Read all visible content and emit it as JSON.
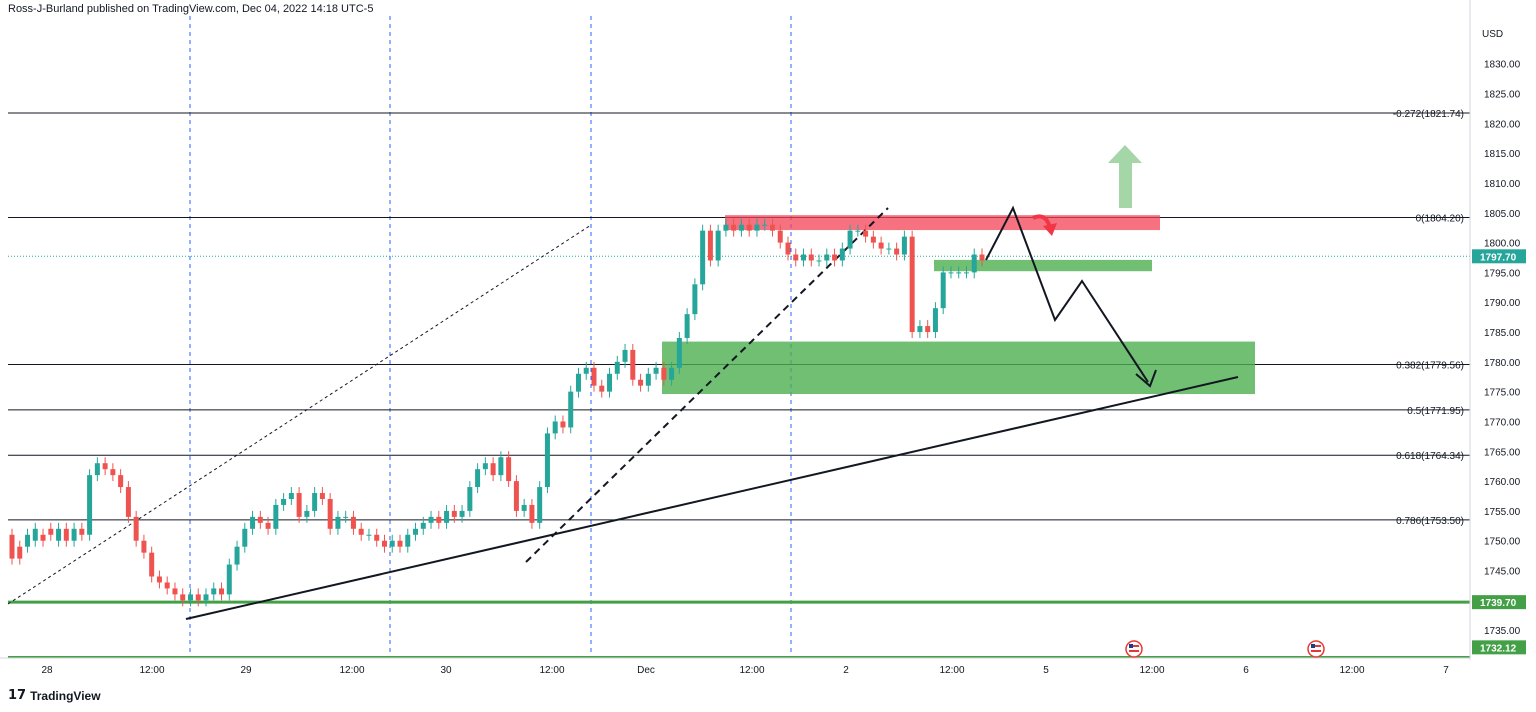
{
  "header": {
    "publisher": "Ross-J-Burland published on TradingView.com, Dec 04, 2022 14:18 UTC-5"
  },
  "footer": {
    "brand": "TradingView"
  },
  "colors": {
    "up": "#26a69a",
    "down": "#ef5350",
    "green_zone": "#4caf50",
    "red_zone": "#f44355",
    "line": "#131722"
  },
  "chart_data": {
    "type": "candlestick",
    "currency": "USD",
    "ylim": [
      1730.5,
      1838
    ],
    "y_ticks": [
      1735,
      1740,
      1745,
      1750,
      1755,
      1760,
      1765,
      1770,
      1775,
      1780,
      1785,
      1790,
      1795,
      1800,
      1805,
      1810,
      1815,
      1820,
      1825,
      1830
    ],
    "x_ticks": [
      "28",
      "12:00",
      "29",
      "12:00",
      "30",
      "12:00",
      "Dec",
      "12:00",
      "2",
      "12:00",
      "5",
      "12:00",
      "6",
      "12:00",
      "7"
    ],
    "last_price": "1797.70",
    "price_badges": [
      "1739.70",
      "1732.12"
    ],
    "fib_levels": [
      {
        "label": "-0.272(1821.74)",
        "value": 1821.74
      },
      {
        "label": "0(1804.20)",
        "value": 1804.2
      },
      {
        "label": "0.382(1779.56)",
        "value": 1779.56
      },
      {
        "label": "0.5(1771.95)",
        "value": 1771.95
      },
      {
        "label": "0.618(1764.34)",
        "value": 1764.34
      },
      {
        "label": "0.786(1753.50)",
        "value": 1753.5
      }
    ],
    "support_line": 1739.7,
    "zones": [
      {
        "kind": "resistance",
        "top": 1804.6,
        "bottom": 1802.1
      },
      {
        "kind": "support",
        "top": 1797.1,
        "bottom": 1795.2
      },
      {
        "kind": "support",
        "top": 1783.4,
        "bottom": 1774.6
      }
    ],
    "candles": [
      [
        1751,
        1747
      ],
      [
        1749,
        1747
      ],
      [
        1749,
        1751
      ],
      [
        1750,
        1752
      ],
      [
        1751,
        1750
      ],
      [
        1752,
        1751
      ],
      [
        1750,
        1752
      ],
      [
        1752,
        1750
      ],
      [
        1750,
        1752
      ],
      [
        1752,
        1751
      ],
      [
        1751,
        1761
      ],
      [
        1761,
        1763
      ],
      [
        1763,
        1762
      ],
      [
        1762,
        1761
      ],
      [
        1761,
        1759
      ],
      [
        1759,
        1754
      ],
      [
        1754,
        1750
      ],
      [
        1750,
        1748
      ],
      [
        1748,
        1744
      ],
      [
        1744,
        1743
      ],
      [
        1743,
        1742
      ],
      [
        1742,
        1741
      ],
      [
        1741,
        1740
      ],
      [
        1740,
        1741
      ],
      [
        1741,
        1740
      ],
      [
        1740,
        1741
      ],
      [
        1741,
        1742
      ],
      [
        1742,
        1741
      ],
      [
        1741,
        1746
      ],
      [
        1746,
        1749
      ],
      [
        1749,
        1752
      ],
      [
        1752,
        1754
      ],
      [
        1754,
        1753
      ],
      [
        1753,
        1752
      ],
      [
        1752,
        1756
      ],
      [
        1756,
        1757
      ],
      [
        1757,
        1758
      ],
      [
        1758,
        1754
      ],
      [
        1754,
        1755
      ],
      [
        1755,
        1758
      ],
      [
        1758,
        1757
      ],
      [
        1757,
        1752
      ],
      [
        1752,
        1754
      ],
      [
        1754,
        1754
      ],
      [
        1754,
        1752
      ],
      [
        1752,
        1751
      ],
      [
        1751,
        1751
      ],
      [
        1751,
        1750
      ],
      [
        1750,
        1749
      ],
      [
        1749,
        1750
      ],
      [
        1750,
        1749
      ],
      [
        1749,
        1751
      ],
      [
        1751,
        1752
      ],
      [
        1752,
        1753
      ],
      [
        1753,
        1754
      ],
      [
        1754,
        1753
      ],
      [
        1753,
        1755
      ],
      [
        1755,
        1754
      ],
      [
        1754,
        1755
      ],
      [
        1755,
        1759
      ],
      [
        1759,
        1762
      ],
      [
        1762,
        1763
      ],
      [
        1763,
        1761
      ],
      [
        1761,
        1764
      ],
      [
        1764,
        1760
      ],
      [
        1760,
        1755
      ],
      [
        1755,
        1756
      ],
      [
        1756,
        1753
      ],
      [
        1753,
        1759
      ],
      [
        1759,
        1768
      ],
      [
        1768,
        1770
      ],
      [
        1770,
        1769
      ],
      [
        1769,
        1775
      ],
      [
        1775,
        1778
      ],
      [
        1778,
        1779
      ],
      [
        1779,
        1776
      ],
      [
        1776,
        1775
      ],
      [
        1775,
        1778
      ],
      [
        1778,
        1780
      ],
      [
        1780,
        1782
      ],
      [
        1782,
        1777
      ],
      [
        1777,
        1776
      ],
      [
        1776,
        1778
      ],
      [
        1778,
        1779
      ],
      [
        1779,
        1777
      ],
      [
        1777,
        1779
      ],
      [
        1779,
        1784
      ],
      [
        1784,
        1788
      ],
      [
        1788,
        1793
      ],
      [
        1793,
        1802
      ],
      [
        1802,
        1797
      ],
      [
        1797,
        1802
      ],
      [
        1802,
        1803
      ],
      [
        1803,
        1802
      ],
      [
        1802,
        1803
      ],
      [
        1803,
        1802
      ],
      [
        1802,
        1803
      ],
      [
        1803,
        1803
      ],
      [
        1803,
        1802
      ],
      [
        1802,
        1800
      ],
      [
        1800,
        1798
      ],
      [
        1798,
        1797
      ],
      [
        1797,
        1798
      ],
      [
        1798,
        1797
      ],
      [
        1797,
        1797
      ],
      [
        1797,
        1798
      ],
      [
        1798,
        1797
      ],
      [
        1797,
        1799
      ],
      [
        1799,
        1802
      ],
      [
        1802,
        1802
      ],
      [
        1802,
        1801
      ],
      [
        1801,
        1800
      ],
      [
        1800,
        1799
      ],
      [
        1799,
        1799
      ],
      [
        1799,
        1798
      ],
      [
        1798,
        1801
      ],
      [
        1801,
        1785
      ],
      [
        1785,
        1786
      ],
      [
        1786,
        1785
      ],
      [
        1785,
        1789
      ],
      [
        1789,
        1795
      ],
      [
        1795,
        1795
      ],
      [
        1795,
        1795
      ],
      [
        1795,
        1795
      ],
      [
        1795,
        1798
      ],
      [
        1798,
        1797
      ]
    ]
  }
}
